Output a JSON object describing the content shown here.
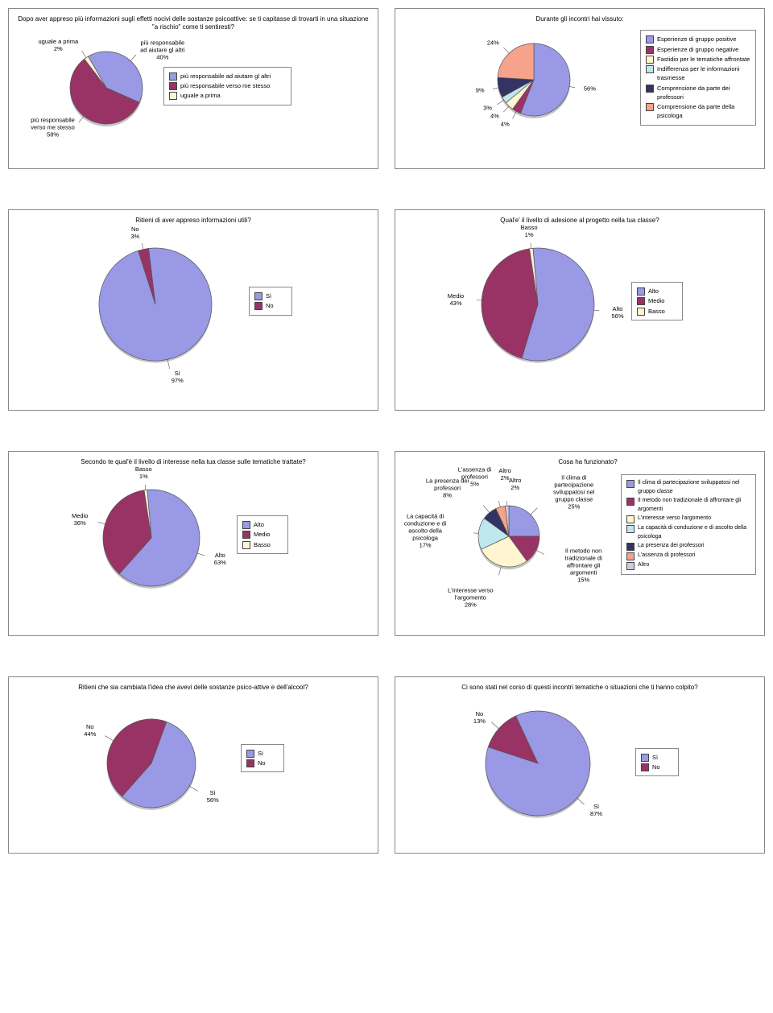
{
  "colors": {
    "blue": "#9999e6",
    "maroon": "#993366",
    "cream": "#fff5d0",
    "salmon": "#f7a28a",
    "navy": "#333366",
    "cyan": "#bee7ee",
    "lav": "#d0ccde",
    "border": "#666666"
  },
  "chart1": {
    "title": "Dopo aver appreso più informazioni sugli effetti nocivi delle sostanze psicoattive: se ti capitasse di trovarti in una situazione \"a rischio\" come ti sentiresti?",
    "slices": [
      {
        "label": "più responsabile ad aiutare gl altri",
        "pct": 40,
        "color": "#9999e6",
        "callout": "più responsabile\nad aiutare gl altri\n40%"
      },
      {
        "label": "più responsabile verso me stesso",
        "pct": 58,
        "color": "#993366",
        "callout": "più responsabile\nverso me stesso\n58%"
      },
      {
        "label": "uguale a prima",
        "pct": 2,
        "color": "#fff5d0",
        "callout": "uguale a prima\n2%"
      }
    ],
    "legend": [
      {
        "color": "#9999e6",
        "label": "più responsabile ad aiutare gl altri"
      },
      {
        "color": "#993366",
        "label": "più responsabile verso me stesso"
      },
      {
        "color": "#fff5d0",
        "label": "uguale a prima"
      }
    ]
  },
  "chart2": {
    "title": "Durante gli incontri hai vissuto:",
    "slices": [
      {
        "pct": 56,
        "color": "#9999e6",
        "callout": "56%"
      },
      {
        "pct": 4,
        "color": "#993366",
        "callout": "4%"
      },
      {
        "pct": 4,
        "color": "#fff5d0",
        "callout": "4%"
      },
      {
        "pct": 3,
        "color": "#bee7ee",
        "callout": "3%"
      },
      {
        "pct": 9,
        "color": "#333366",
        "callout": "9%"
      },
      {
        "pct": 24,
        "color": "#f7a28a",
        "callout": "24%"
      }
    ],
    "legend": [
      {
        "color": "#9999e6",
        "label": "Esperienze di gruppo positive"
      },
      {
        "color": "#993366",
        "label": "Esperienze di gruppo negative"
      },
      {
        "color": "#fff5d0",
        "label": "Fastidio per le tematiche affrontate"
      },
      {
        "color": "#bee7ee",
        "label": "Indifferenza per le informazioni trasmesse"
      },
      {
        "color": "#333366",
        "label": "Comprensione da parte dei professori"
      },
      {
        "color": "#f7a28a",
        "label": "Comprensione da parte della psicologa"
      }
    ]
  },
  "chart3": {
    "title": "Ritieni di aver appreso informazioni utili?",
    "slices": [
      {
        "pct": 97,
        "color": "#9999e6",
        "callout": "Sì\n97%"
      },
      {
        "pct": 3,
        "color": "#993366",
        "callout": "No\n3%"
      }
    ],
    "legend": [
      {
        "color": "#9999e6",
        "label": "Sì"
      },
      {
        "color": "#993366",
        "label": "No"
      }
    ]
  },
  "chart4": {
    "title": "Qual'e' il livello di adesione al progetto nella tua classe?",
    "slices": [
      {
        "pct": 56,
        "color": "#9999e6",
        "callout": "Alto\n56%"
      },
      {
        "pct": 43,
        "color": "#993366",
        "callout": "Medio\n43%"
      },
      {
        "pct": 1,
        "color": "#fff5d0",
        "callout": "Basso\n1%"
      }
    ],
    "legend": [
      {
        "color": "#9999e6",
        "label": "Alto"
      },
      {
        "color": "#993366",
        "label": "Medio"
      },
      {
        "color": "#fff5d0",
        "label": "Basso"
      }
    ]
  },
  "chart5": {
    "title": "Secondo te qual'è il livello di interesse nella tua classe sulle tematiche trattate?",
    "slices": [
      {
        "pct": 63,
        "color": "#9999e6",
        "callout": "Alto\n63%"
      },
      {
        "pct": 36,
        "color": "#993366",
        "callout": "Medio\n36%"
      },
      {
        "pct": 1,
        "color": "#fff5d0",
        "callout": "Basso\n1%"
      }
    ],
    "legend": [
      {
        "color": "#9999e6",
        "label": "Alto"
      },
      {
        "color": "#993366",
        "label": "Medio"
      },
      {
        "color": "#fff5d0",
        "label": "Basso"
      }
    ]
  },
  "chart6": {
    "title": "Cosa ha funzionato?",
    "altro_label": "Altro\n2%",
    "slices": [
      {
        "pct": 25,
        "color": "#9999e6",
        "callout": "Il clima di\npartecipazione\nsviluppatosi nel\ngruppo classe\n25%"
      },
      {
        "pct": 15,
        "color": "#993366",
        "callout": "Il metodo non\ntradizionale di\naffrontare gli\nargomenti\n15%"
      },
      {
        "pct": 28,
        "color": "#fff5d0",
        "callout": "L'interesse verso\nl'argomento\n28%"
      },
      {
        "pct": 17,
        "color": "#bee7ee",
        "callout": "La capacità di\nconduzione e di\nascolto della\npsicologa\n17%"
      },
      {
        "pct": 8,
        "color": "#333366",
        "callout": "La presenza dei\nprofessori\n8%"
      },
      {
        "pct": 5,
        "color": "#f7a28a",
        "callout": "L'assenza di\nprofessori\n5%"
      },
      {
        "pct": 2,
        "color": "#d0ccde",
        "callout": "Altro\n2%"
      }
    ],
    "legend": [
      {
        "color": "#9999e6",
        "label": "Il clima di partecipazione sviluppatosi nel gruppo classe"
      },
      {
        "color": "#993366",
        "label": "Il metodo non tradizionale di affrontare gli argomenti"
      },
      {
        "color": "#fff5d0",
        "label": "L'interesse verso l'argomento"
      },
      {
        "color": "#bee7ee",
        "label": "La capacità di conduzione e di ascolto della psicologa"
      },
      {
        "color": "#333366",
        "label": "La presenza dei professori"
      },
      {
        "color": "#f7a28a",
        "label": "L'assenza di professori"
      },
      {
        "color": "#d0ccde",
        "label": "Altro"
      }
    ]
  },
  "chart7": {
    "title": "Ritieni che sia cambiata l'idea che avevi delle sostanze psico-attive e dell'alcool?",
    "slices": [
      {
        "pct": 56,
        "color": "#9999e6",
        "callout": "Sì\n56%"
      },
      {
        "pct": 44,
        "color": "#993366",
        "callout": "No\n44%"
      }
    ],
    "legend": [
      {
        "color": "#9999e6",
        "label": "Sì"
      },
      {
        "color": "#993366",
        "label": "No"
      }
    ]
  },
  "chart8": {
    "title": "Ci sono stati nel corso di questi incontri tematiche o situazioni che ti hanno colpito?",
    "slices": [
      {
        "pct": 87,
        "color": "#9999e6",
        "callout": "Sì\n87%"
      },
      {
        "pct": 13,
        "color": "#993366",
        "callout": "No\n13%"
      }
    ],
    "legend": [
      {
        "color": "#9999e6",
        "label": "Sì"
      },
      {
        "color": "#993366",
        "label": "No"
      }
    ]
  }
}
